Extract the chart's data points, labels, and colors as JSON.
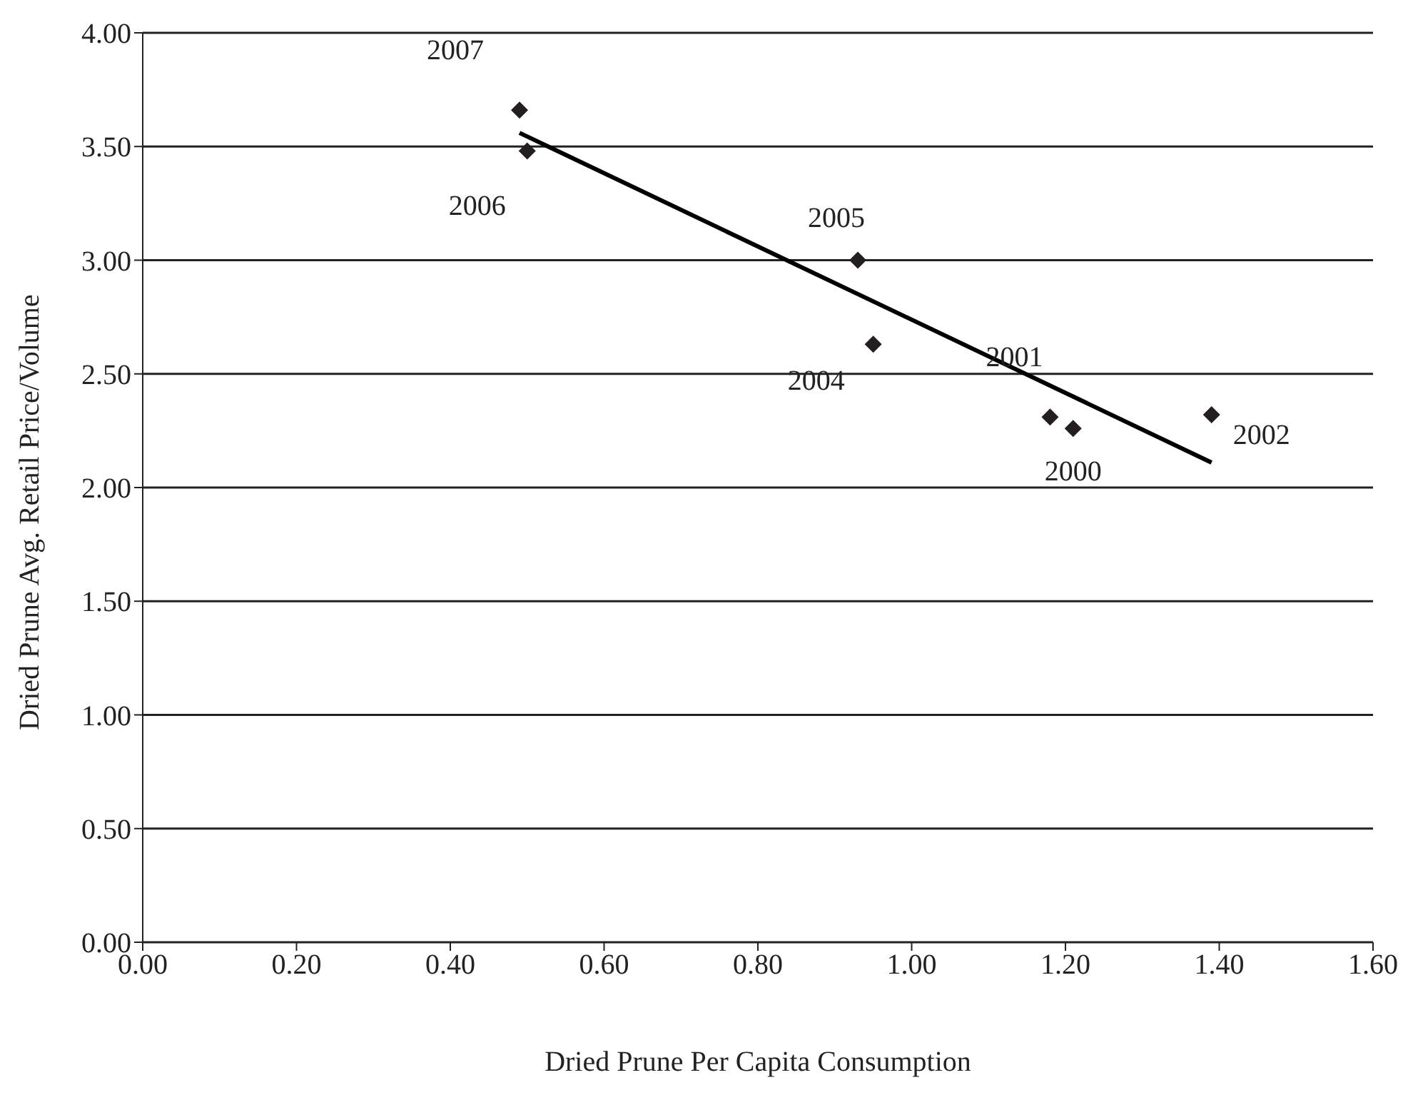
{
  "chart_data": {
    "type": "scatter",
    "xlabel": "Dried Prune Per Capita Consumption",
    "ylabel": "Dried Prune Avg. Retail Price/Volume",
    "xlim": [
      0,
      1.6
    ],
    "xticks": [
      {
        "value": 0,
        "label": "0.00"
      },
      {
        "value": 0.2,
        "label": "0.20"
      },
      {
        "value": 0.4,
        "label": "0.40"
      },
      {
        "value": 0.6,
        "label": "0.60"
      },
      {
        "value": 0.8,
        "label": "0.80"
      },
      {
        "value": 1,
        "label": "1.00"
      },
      {
        "value": 1.2,
        "label": "1.20"
      },
      {
        "value": 1.4,
        "label": "1.40"
      },
      {
        "value": 1.6,
        "label": "1.60"
      }
    ],
    "ylim": [
      0,
      4
    ],
    "yticks": [
      {
        "value": 0,
        "label": "0.00"
      },
      {
        "value": 0.5,
        "label": "0.50"
      },
      {
        "value": 1,
        "label": "1.00"
      },
      {
        "value": 1.5,
        "label": "1.50"
      },
      {
        "value": 2,
        "label": "2.00"
      },
      {
        "value": 2.5,
        "label": "2.50"
      },
      {
        "value": 3,
        "label": "3.00"
      },
      {
        "value": 3.5,
        "label": "3.50"
      },
      {
        "value": 4,
        "label": "4.00"
      }
    ],
    "grid": "y",
    "legend": false,
    "series": [
      {
        "color": "#231f20",
        "marker": "diamond",
        "x": [
          0.49,
          0.5,
          0.93,
          0.95,
          1.18,
          1.21,
          1.39
        ],
        "values": [
          3.66,
          3.48,
          3.0,
          2.63,
          2.31,
          2.26,
          2.32
        ]
      },
      {
        "type": "line",
        "color": "#000000",
        "marker": "none",
        "x": [
          0.49,
          1.39
        ],
        "values": [
          3.56,
          2.11
        ]
      }
    ],
    "annotations": [
      {
        "text": "2007",
        "x": 0.49,
        "y": 3.66
      },
      {
        "text": "2006",
        "x": 0.5,
        "y": 3.48
      },
      {
        "text": "2005",
        "x": 0.93,
        "y": 3.0
      },
      {
        "text": "2004",
        "x": 0.95,
        "y": 2.63
      },
      {
        "text": "2001",
        "x": 1.18,
        "y": 2.31
      },
      {
        "text": "2000",
        "x": 1.21,
        "y": 2.26
      },
      {
        "text": "2002",
        "x": 1.39,
        "y": 2.32
      }
    ]
  }
}
